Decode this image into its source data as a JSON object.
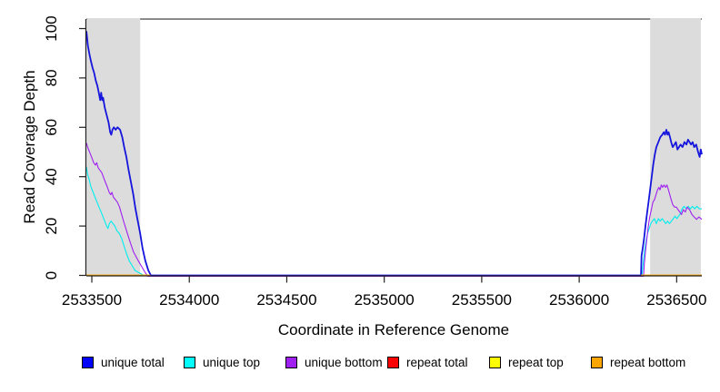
{
  "figure": {
    "background": "#ffffff",
    "shading_color": "#DCDCDC"
  },
  "chart_data": {
    "type": "line",
    "title": "",
    "xlabel": "Coordinate in Reference Genome",
    "ylabel": "Read Coverage Depth",
    "xlim": [
      2533472,
      2536629
    ],
    "ylim": [
      0,
      100
    ],
    "x_ticks": [
      2533500,
      2534000,
      2534500,
      2535000,
      2535500,
      2536000,
      2536500
    ],
    "y_ticks": [
      0,
      20,
      40,
      60,
      80,
      100
    ],
    "grid": false,
    "legend_position": "bottom",
    "shaded_regions": [
      {
        "x0": 2533475,
        "x1": 2533748,
        "meaning": "repeat region"
      },
      {
        "x0": 2536364,
        "x1": 2536624,
        "meaning": "repeat region"
      }
    ],
    "series": [
      {
        "name": "unique top",
        "color": "#00EEEE",
        "line_width": 1.1,
        "segments": [
          [
            [
              2533472,
              44
            ],
            [
              2533478,
              41
            ],
            [
              2533486,
              39
            ],
            [
              2533495,
              36
            ],
            [
              2533505,
              34
            ],
            [
              2533515,
              32
            ],
            [
              2533525,
              30
            ],
            [
              2533535,
              28
            ],
            [
              2533546,
              26
            ],
            [
              2533556,
              24
            ],
            [
              2533566,
              22
            ],
            [
              2533576,
              20
            ],
            [
              2533583,
              19
            ],
            [
              2533590,
              21
            ],
            [
              2533599,
              22
            ],
            [
              2533608,
              21
            ],
            [
              2533618,
              20
            ],
            [
              2533629,
              18
            ],
            [
              2533641,
              17
            ],
            [
              2533653,
              15
            ],
            [
              2533665,
              12
            ],
            [
              2533677,
              9
            ],
            [
              2533691,
              6
            ],
            [
              2533706,
              4
            ],
            [
              2533722,
              2
            ],
            [
              2533744,
              1
            ],
            [
              2533768,
              0
            ],
            [
              2536322,
              0
            ],
            [
              2536328,
              5
            ],
            [
              2536335,
              10
            ],
            [
              2536343,
              14
            ],
            [
              2536351,
              17
            ],
            [
              2536359,
              19
            ],
            [
              2536367,
              21
            ],
            [
              2536376,
              22
            ],
            [
              2536386,
              23
            ],
            [
              2536396,
              21
            ],
            [
              2536406,
              23
            ],
            [
              2536416,
              22
            ],
            [
              2536426,
              23
            ],
            [
              2536435,
              22
            ],
            [
              2536444,
              21
            ],
            [
              2536453,
              22
            ],
            [
              2536463,
              21
            ],
            [
              2536473,
              22
            ],
            [
              2536483,
              23
            ],
            [
              2536492,
              24
            ],
            [
              2536501,
              23
            ],
            [
              2536510,
              24
            ],
            [
              2536519,
              25
            ],
            [
              2536528,
              27
            ],
            [
              2536538,
              28
            ],
            [
              2536548,
              27
            ],
            [
              2536559,
              28
            ],
            [
              2536570,
              27
            ],
            [
              2536581,
              28
            ],
            [
              2536592,
              27
            ],
            [
              2536604,
              28
            ],
            [
              2536616,
              27
            ],
            [
              2536629,
              27
            ]
          ]
        ]
      },
      {
        "name": "unique bottom",
        "color": "#A020F0",
        "line_width": 1.1,
        "segments": [
          [
            [
              2533472,
              54
            ],
            [
              2533480,
              52
            ],
            [
              2533490,
              50
            ],
            [
              2533500,
              48
            ],
            [
              2533510,
              46
            ],
            [
              2533518,
              45
            ],
            [
              2533525,
              46
            ],
            [
              2533532,
              44
            ],
            [
              2533541,
              43
            ],
            [
              2533551,
              42
            ],
            [
              2533560,
              40
            ],
            [
              2533570,
              38
            ],
            [
              2533580,
              36
            ],
            [
              2533589,
              34
            ],
            [
              2533597,
              33
            ],
            [
              2533603,
              34
            ],
            [
              2533611,
              32
            ],
            [
              2533621,
              31
            ],
            [
              2533631,
              30
            ],
            [
              2533642,
              28
            ],
            [
              2533653,
              25
            ],
            [
              2533664,
              22
            ],
            [
              2533676,
              19
            ],
            [
              2533688,
              16
            ],
            [
              2533700,
              13
            ],
            [
              2533713,
              10
            ],
            [
              2533726,
              8
            ],
            [
              2533740,
              6
            ],
            [
              2533755,
              4
            ],
            [
              2533770,
              2
            ],
            [
              2533786,
              0
            ],
            [
              2536330,
              0
            ],
            [
              2536334,
              5
            ],
            [
              2536340,
              10
            ],
            [
              2536347,
              15
            ],
            [
              2536354,
              20
            ],
            [
              2536362,
              24
            ],
            [
              2536370,
              27
            ],
            [
              2536378,
              30
            ],
            [
              2536386,
              31
            ],
            [
              2536394,
              33
            ],
            [
              2536402,
              35
            ],
            [
              2536409,
              36
            ],
            [
              2536415,
              35
            ],
            [
              2536421,
              37
            ],
            [
              2536428,
              36
            ],
            [
              2536435,
              37
            ],
            [
              2536443,
              36
            ],
            [
              2536450,
              37
            ],
            [
              2536458,
              35
            ],
            [
              2536465,
              33
            ],
            [
              2536472,
              31
            ],
            [
              2536480,
              29
            ],
            [
              2536489,
              28
            ],
            [
              2536498,
              28
            ],
            [
              2536507,
              27
            ],
            [
              2536516,
              26
            ],
            [
              2536525,
              25
            ],
            [
              2536534,
              27
            ],
            [
              2536544,
              26
            ],
            [
              2536554,
              28
            ],
            [
              2536566,
              27
            ],
            [
              2536578,
              25
            ],
            [
              2536590,
              24
            ],
            [
              2536602,
              23
            ],
            [
              2536614,
              24
            ],
            [
              2536629,
              23
            ]
          ]
        ]
      },
      {
        "name": "unique total",
        "color": "#1515DD",
        "line_width": 1.8,
        "segments": [
          [
            [
              2533472,
              99
            ],
            [
              2533475,
              97
            ],
            [
              2533480,
              93
            ],
            [
              2533487,
              90
            ],
            [
              2533495,
              87
            ],
            [
              2533504,
              84
            ],
            [
              2533512,
              82
            ],
            [
              2533520,
              79
            ],
            [
              2533528,
              77
            ],
            [
              2533536,
              74
            ],
            [
              2533543,
              71
            ],
            [
              2533548,
              74
            ],
            [
              2533553,
              71
            ],
            [
              2533558,
              72
            ],
            [
              2533566,
              68
            ],
            [
              2533576,
              65
            ],
            [
              2533586,
              62
            ],
            [
              2533594,
              58
            ],
            [
              2533600,
              57
            ],
            [
              2533606,
              59
            ],
            [
              2533613,
              60
            ],
            [
              2533622,
              59
            ],
            [
              2533632,
              60
            ],
            [
              2533645,
              59
            ],
            [
              2533656,
              56
            ],
            [
              2533666,
              52
            ],
            [
              2533677,
              48
            ],
            [
              2533688,
              43
            ],
            [
              2533700,
              38
            ],
            [
              2533712,
              33
            ],
            [
              2533724,
              27
            ],
            [
              2533736,
              22
            ],
            [
              2533748,
              17
            ],
            [
              2533760,
              11
            ],
            [
              2533774,
              6
            ],
            [
              2533790,
              2
            ],
            [
              2533803,
              0
            ],
            [
              2536317,
              0
            ],
            [
              2536320,
              8
            ],
            [
              2536326,
              11
            ],
            [
              2536333,
              15
            ],
            [
              2536340,
              20
            ],
            [
              2536348,
              25
            ],
            [
              2536356,
              30
            ],
            [
              2536364,
              35
            ],
            [
              2536372,
              40
            ],
            [
              2536380,
              45
            ],
            [
              2536388,
              49
            ],
            [
              2536396,
              52
            ],
            [
              2536406,
              54
            ],
            [
              2536416,
              56
            ],
            [
              2536426,
              57
            ],
            [
              2536434,
              58
            ],
            [
              2536440,
              57
            ],
            [
              2536447,
              59
            ],
            [
              2536453,
              57
            ],
            [
              2536459,
              58
            ],
            [
              2536466,
              56
            ],
            [
              2536472,
              54
            ],
            [
              2536480,
              52
            ],
            [
              2536488,
              53
            ],
            [
              2536496,
              54
            ],
            [
              2536504,
              51
            ],
            [
              2536512,
              52
            ],
            [
              2536520,
              53
            ],
            [
              2536530,
              52
            ],
            [
              2536540,
              54
            ],
            [
              2536550,
              53
            ],
            [
              2536558,
              55
            ],
            [
              2536566,
              54
            ],
            [
              2536574,
              53
            ],
            [
              2536582,
              54
            ],
            [
              2536590,
              52
            ],
            [
              2536600,
              53
            ],
            [
              2536610,
              50
            ],
            [
              2536618,
              48
            ],
            [
              2536624,
              51
            ],
            [
              2536629,
              49
            ]
          ]
        ]
      },
      {
        "name": "repeat total",
        "color": "#FF0000",
        "line_width": 1.4,
        "note": "constant 0 within repeat regions; hidden beneath repeat top/bottom lines",
        "segments": [
          [
            [
              2533472,
              0
            ],
            [
              2533800,
              0
            ]
          ],
          [
            [
              2536317,
              0
            ],
            [
              2536629,
              0
            ]
          ]
        ]
      },
      {
        "name": "repeat top",
        "color": "#FFFF00",
        "line_width": 1.4,
        "note": "constant 0 within repeat regions; hidden beneath repeat bottom line",
        "segments": [
          [
            [
              2533472,
              0
            ],
            [
              2533800,
              0
            ]
          ],
          [
            [
              2536317,
              0
            ],
            [
              2536629,
              0
            ]
          ]
        ]
      },
      {
        "name": "repeat bottom",
        "color": "#FFA500",
        "line_width": 1.6,
        "segments": [
          [
            [
              2533472,
              0
            ],
            [
              2533800,
              0
            ]
          ],
          [
            [
              2536317,
              0
            ],
            [
              2536629,
              0
            ]
          ]
        ]
      }
    ]
  },
  "legend": {
    "items": [
      {
        "label": "unique total",
        "color": "#0000FF"
      },
      {
        "label": "unique top",
        "color": "#00FFFF"
      },
      {
        "label": "unique bottom",
        "color": "#A020F0"
      },
      {
        "label": "repeat total",
        "color": "#FF0000"
      },
      {
        "label": "repeat top",
        "color": "#FFFF00"
      },
      {
        "label": "repeat bottom",
        "color": "#FFA500"
      }
    ]
  }
}
